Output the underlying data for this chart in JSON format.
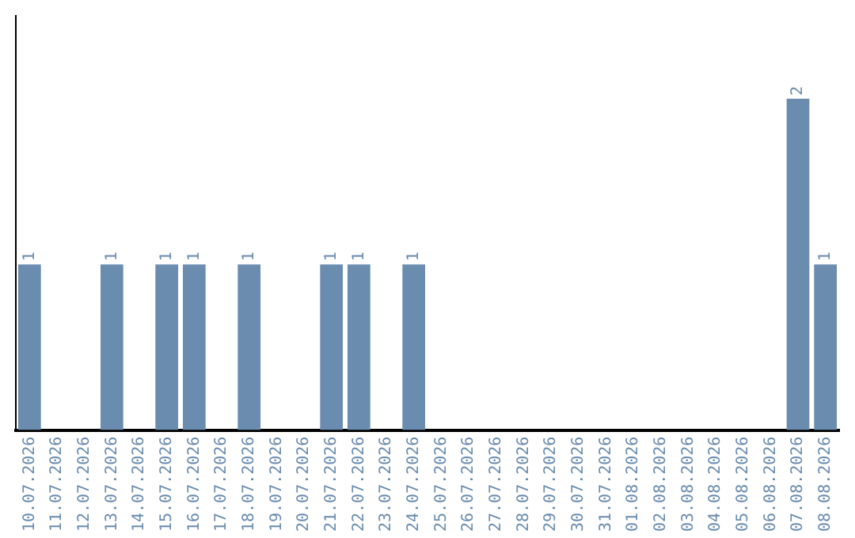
{
  "chart_data": {
    "type": "bar",
    "categories": [
      "10.07.2026",
      "11.07.2026",
      "12.07.2026",
      "13.07.2026",
      "14.07.2026",
      "15.07.2026",
      "16.07.2026",
      "17.07.2026",
      "18.07.2026",
      "19.07.2026",
      "20.07.2026",
      "21.07.2026",
      "22.07.2026",
      "23.07.2026",
      "24.07.2026",
      "25.07.2026",
      "26.07.2026",
      "27.07.2026",
      "28.07.2026",
      "29.07.2026",
      "30.07.2026",
      "31.07.2026",
      "01.08.2026",
      "02.08.2026",
      "03.08.2026",
      "04.08.2026",
      "05.08.2026",
      "06.08.2026",
      "07.08.2026",
      "08.08.2026"
    ],
    "values": [
      1,
      0,
      0,
      1,
      0,
      1,
      1,
      0,
      1,
      0,
      0,
      1,
      1,
      0,
      1,
      0,
      0,
      0,
      0,
      0,
      0,
      0,
      0,
      0,
      0,
      0,
      0,
      0,
      2,
      1
    ],
    "value_labels": [
      "1",
      null,
      null,
      "1",
      null,
      "1",
      "1",
      null,
      "1",
      null,
      null,
      "1",
      "1",
      null,
      "1",
      null,
      null,
      null,
      null,
      null,
      null,
      null,
      null,
      null,
      null,
      null,
      null,
      null,
      "2",
      "1"
    ],
    "color": "#6a8caf",
    "grid": false,
    "legend": false,
    "tick_labels": "x"
  }
}
